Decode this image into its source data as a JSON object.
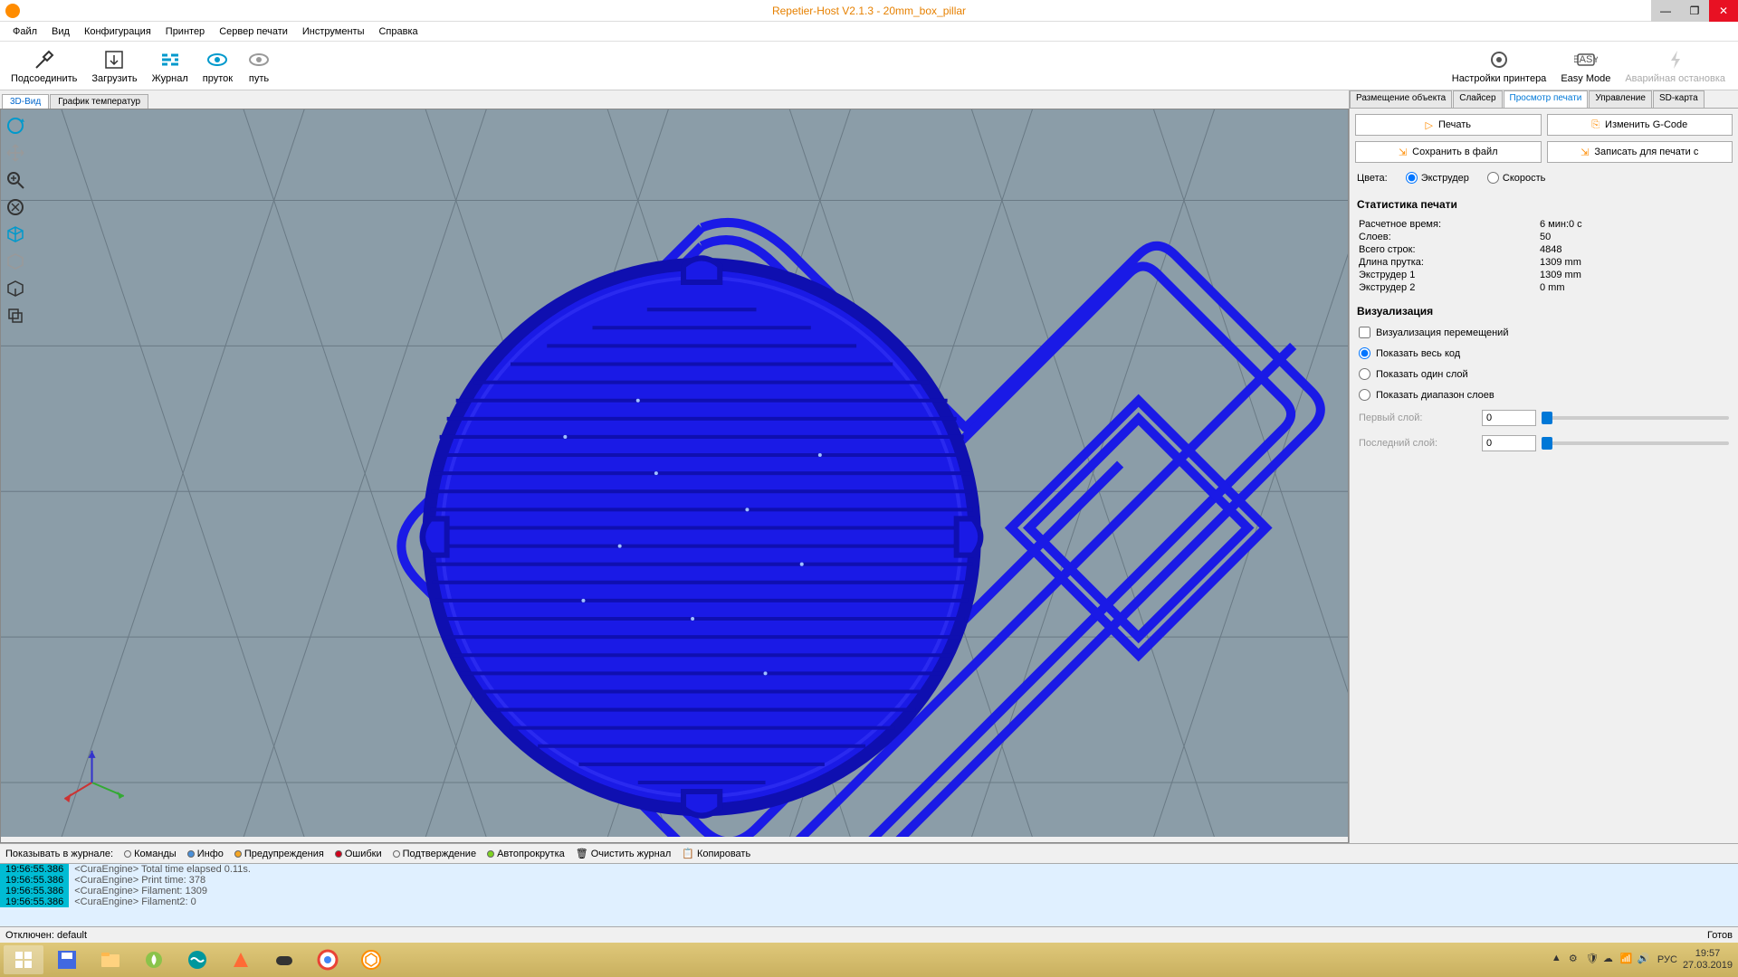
{
  "titlebar": {
    "text": "Repetier-Host V2.1.3 - 20mm_box_pillar"
  },
  "menu": [
    "Файл",
    "Вид",
    "Конфигурация",
    "Принтер",
    "Сервер печати",
    "Инструменты",
    "Справка"
  ],
  "toolbar": {
    "connect": "Подсоединить",
    "load": "Загрузить",
    "log": "Журнал",
    "filament": "пруток",
    "path": "путь",
    "settings": "Настройки принтера",
    "easy": "Easy Mode",
    "emergency": "Аварийная остановка"
  },
  "viewTabs": {
    "v3d": "3D-Вид",
    "temp": "График температур"
  },
  "leftTools": [
    "rotate",
    "move",
    "zoom",
    "zoom-reset",
    "iso",
    "top",
    "front",
    "layers"
  ],
  "rightTabs": {
    "placement": "Размещение объекта",
    "slicer": "Слайсер",
    "preview": "Просмотр печати",
    "manual": "Управление",
    "sd": "SD-карта"
  },
  "buttons": {
    "print": "Печать",
    "edit": "Изменить G-Code",
    "save": "Сохранить в файл",
    "saveSd": "Записать для печати с"
  },
  "colors": {
    "label": "Цвета:",
    "extruder": "Экструдер",
    "speed": "Скорость"
  },
  "stats": {
    "title": "Статистика печати",
    "rows": [
      {
        "label": "Расчетное время:",
        "val": "6 мин:0 с"
      },
      {
        "label": "Слоев:",
        "val": "50"
      },
      {
        "label": "Всего строк:",
        "val": "4848"
      },
      {
        "label": "Длина прутка:",
        "val": "1309 mm"
      },
      {
        "label": "Экструдер 1",
        "val": "1309 mm"
      },
      {
        "label": "Экструдер 2",
        "val": "0 mm"
      }
    ]
  },
  "viz": {
    "title": "Визуализация",
    "travel": "Визуализация перемещений",
    "all": "Показать весь код",
    "single": "Показать один слой",
    "range": "Показать диапазон слоев",
    "first": "Первый слой:",
    "last": "Последний слой:",
    "firstVal": "0",
    "lastVal": "0"
  },
  "logCtrl": {
    "show": "Показывать в журнале:",
    "commands": "Команды",
    "info": "Инфо",
    "warn": "Предупреждения",
    "errors": "Ошибки",
    "ack": "Подтверждение",
    "autoscroll": "Автопрокрутка",
    "clear": "Очистить журнал",
    "copy": "Копировать"
  },
  "log": [
    {
      "ts": "19:56:55.386",
      "msg": "<CuraEngine> Total time elapsed  0.11s."
    },
    {
      "ts": "19:56:55.386",
      "msg": "<CuraEngine> Print time: 378"
    },
    {
      "ts": "19:56:55.386",
      "msg": "<CuraEngine> Filament: 1309"
    },
    {
      "ts": "19:56:55.386",
      "msg": "<CuraEngine> Filament2: 0"
    }
  ],
  "status": {
    "left": "Отключен: default",
    "right": "Готов"
  },
  "tray": {
    "lang": "РУС",
    "time": "19:57",
    "date": "27.03.2019"
  },
  "viewport": {
    "bg": "#8b9da8",
    "grid": "#6a7a85",
    "extrusion": "#1a1ae6",
    "extrusion_dark": "#0f0fb0",
    "axis_x": "#cc3333",
    "axis_y": "#33aa33",
    "axis_z": "#3333cc"
  }
}
